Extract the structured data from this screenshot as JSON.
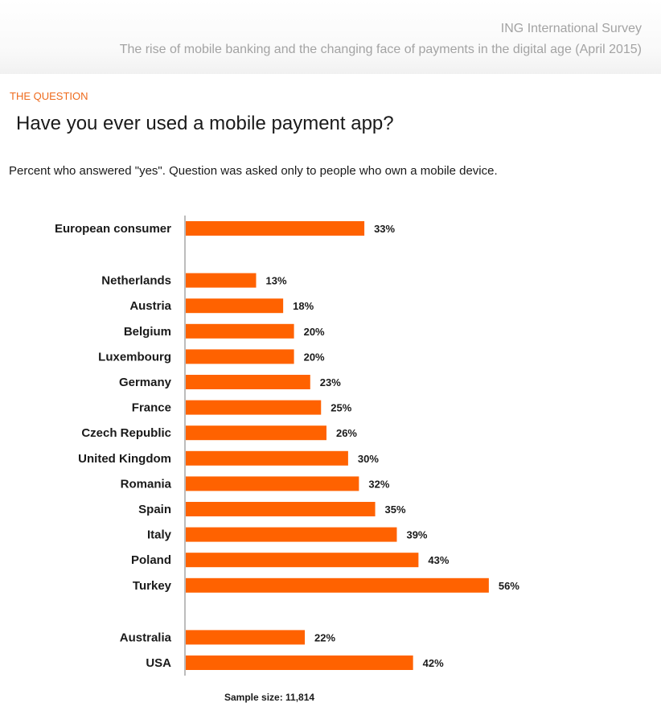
{
  "header": {
    "title": "ING International Survey",
    "subtitle": "The rise of mobile banking and the changing face of payments in the digital age (April 2015)"
  },
  "eyebrow": "THE QUESTION",
  "question": "Have you ever used a mobile payment app?",
  "note": "Percent who answered \"yes\". Question was asked only to people who own a mobile device.",
  "sample_size": "Sample size: 11,814",
  "colors": {
    "bar": "#ff6200",
    "accent": "#ee6a1c",
    "axis": "#7a7a7a"
  },
  "chart_data": {
    "type": "bar",
    "orientation": "horizontal",
    "title": "Have you ever used a mobile payment app?",
    "xlabel": "",
    "ylabel": "",
    "unit": "%",
    "grid": false,
    "groups": [
      [
        "European consumer"
      ],
      [
        "Netherlands",
        "Austria",
        "Belgium",
        "Luxembourg",
        "Germany",
        "France",
        "Czech Republic",
        "United Kingdom",
        "Romania",
        "Spain",
        "Italy",
        "Poland",
        "Turkey"
      ],
      [
        "Australia",
        "USA"
      ]
    ],
    "categories": [
      "European consumer",
      "Netherlands",
      "Austria",
      "Belgium",
      "Luxembourg",
      "Germany",
      "France",
      "Czech Republic",
      "United Kingdom",
      "Romania",
      "Spain",
      "Italy",
      "Poland",
      "Turkey",
      "Australia",
      "USA"
    ],
    "values": [
      33,
      13,
      18,
      20,
      20,
      23,
      25,
      26,
      30,
      32,
      35,
      39,
      43,
      56,
      22,
      42
    ],
    "value_labels": [
      "33%",
      "13%",
      "18%",
      "20%",
      "20%",
      "23%",
      "25%",
      "26%",
      "30%",
      "32%",
      "35%",
      "39%",
      "43%",
      "56%",
      "22%",
      "42%"
    ]
  }
}
